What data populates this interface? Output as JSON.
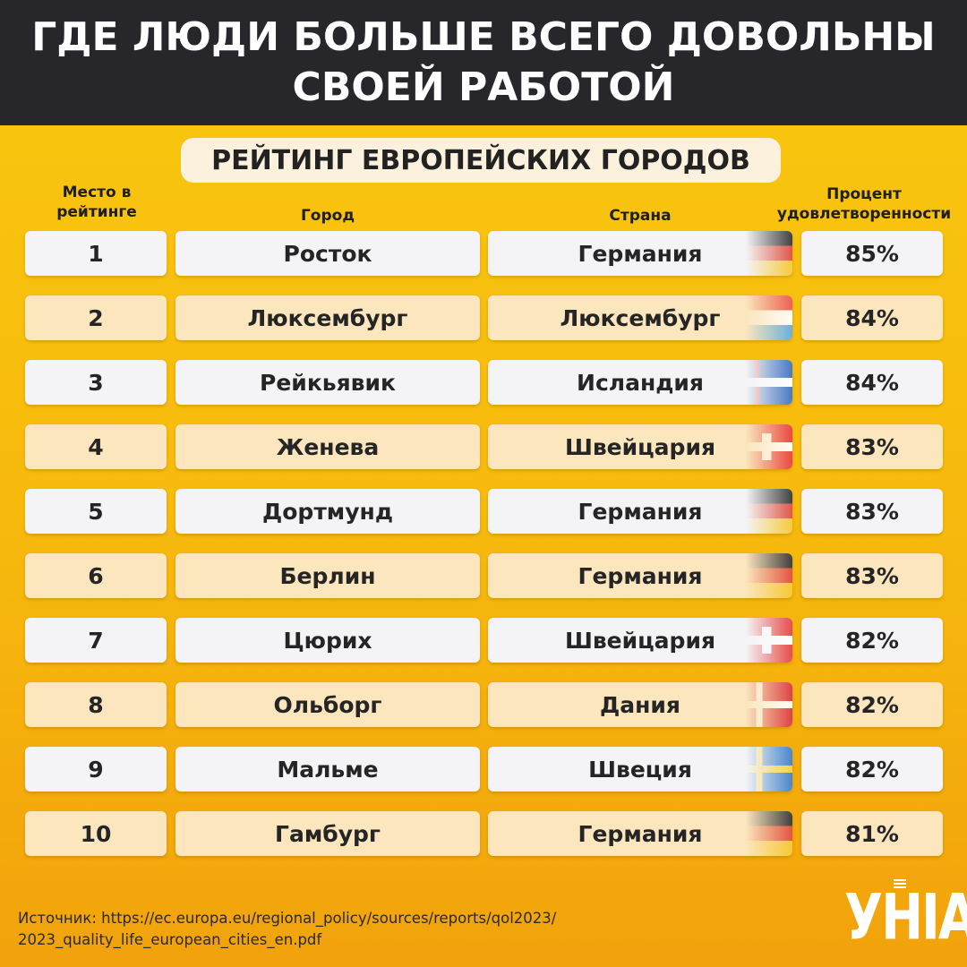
{
  "header": {
    "title_line1": "ГДЕ ЛЮДИ БОЛЬШЕ ВСЕГО ДОВОЛЬНЫ",
    "title_line2": "СВОЕЙ РАБОТОЙ"
  },
  "subtitle": "РЕЙТИНГ ЕВРОПЕЙСКИХ ГОРОДОВ",
  "columns": {
    "rank_line1": "Место в",
    "rank_line2": "рейтинге",
    "city": "Город",
    "country": "Страна",
    "pct_line1": "Процент",
    "pct_line2": "удовлетворенности"
  },
  "rows": [
    {
      "rank": "1",
      "city": "Росток",
      "country": "Германия",
      "flag": "germany-flag",
      "pct": "85%"
    },
    {
      "rank": "2",
      "city": "Люксембург",
      "country": "Люксембург",
      "flag": "luxembourg-flag",
      "pct": "84%"
    },
    {
      "rank": "3",
      "city": "Рейкьявик",
      "country": "Исландия",
      "flag": "iceland-flag",
      "pct": "84%"
    },
    {
      "rank": "4",
      "city": "Женева",
      "country": "Швейцария",
      "flag": "switzerland-flag",
      "pct": "83%"
    },
    {
      "rank": "5",
      "city": "Дортмунд",
      "country": "Германия",
      "flag": "germany-flag",
      "pct": "83%"
    },
    {
      "rank": "6",
      "city": "Берлин",
      "country": "Германия",
      "flag": "germany-flag",
      "pct": "83%"
    },
    {
      "rank": "7",
      "city": "Цюрих",
      "country": "Швейцария",
      "flag": "switzerland-flag",
      "pct": "82%"
    },
    {
      "rank": "8",
      "city": "Ольборг",
      "country": "Дания",
      "flag": "denmark-flag",
      "pct": "82%"
    },
    {
      "rank": "9",
      "city": "Мальме",
      "country": "Швеция",
      "flag": "sweden-flag",
      "pct": "82%"
    },
    {
      "rank": "10",
      "city": "Гамбург",
      "country": "Германия",
      "flag": "germany-flag",
      "pct": "81%"
    }
  ],
  "source": {
    "line1": "Источник: https://ec.europa.eu/regional_policy/sources/reports/qol2023/",
    "line2": "2023_quality_life_european_cities_en.pdf"
  },
  "logo": "УНІАН",
  "colors": {
    "header_bg": "#26262b",
    "background": "#f9c80e",
    "row_light": "#f4f4f6",
    "row_cream": "#fbe6bd"
  }
}
